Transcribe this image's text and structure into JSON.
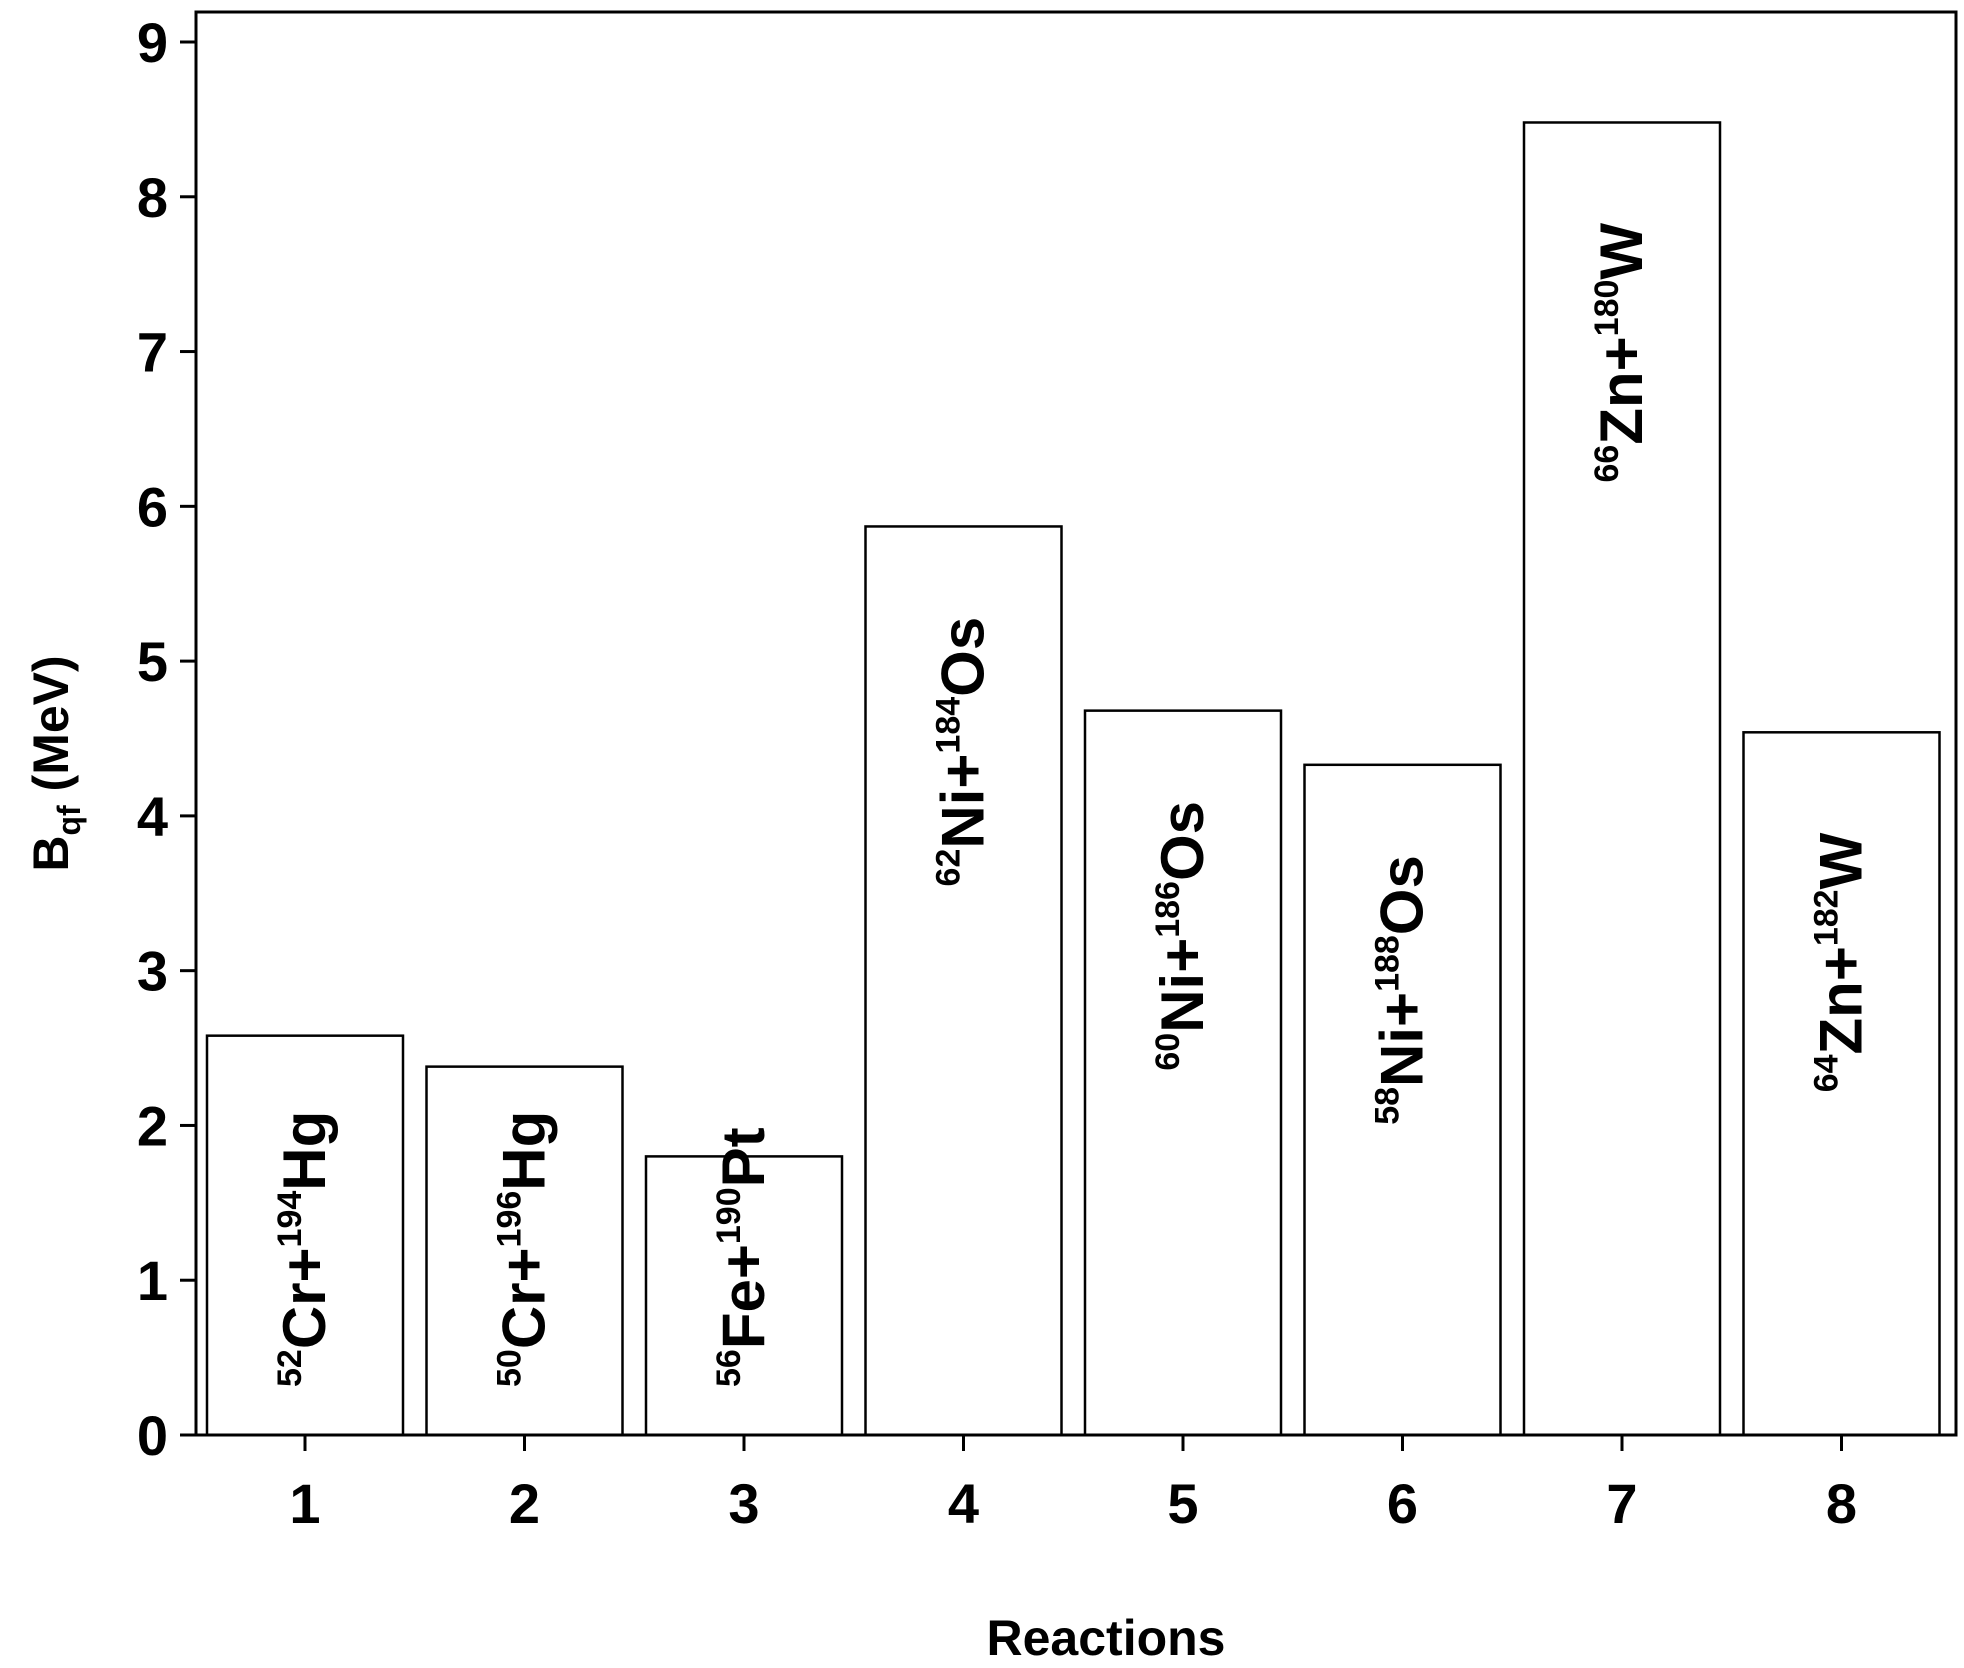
{
  "chart_data": {
    "type": "bar",
    "xlabel": "Reactions",
    "ylabel": {
      "main": "B",
      "sub": "qf",
      "rest": " (MeV)"
    },
    "ylim": [
      0,
      9
    ],
    "yticks": [
      "0",
      "1",
      "2",
      "3",
      "4",
      "5",
      "6",
      "7",
      "8",
      "9"
    ],
    "categories": [
      "1",
      "2",
      "3",
      "4",
      "5",
      "6",
      "7",
      "8"
    ],
    "values": [
      2.58,
      2.38,
      1.8,
      5.87,
      4.68,
      4.33,
      8.48,
      4.54
    ],
    "grid": false,
    "bar_labels": [
      {
        "a1": "52",
        "e1": "Cr+",
        "a2": "194",
        "e2": "Hg"
      },
      {
        "a1": "50",
        "e1": "Cr+",
        "a2": "196",
        "e2": "Hg"
      },
      {
        "a1": "56",
        "e1": "Fe+",
        "a2": "190",
        "e2": "Pt"
      },
      {
        "a1": "62",
        "e1": "Ni+",
        "a2": "184",
        "e2": "Os"
      },
      {
        "a1": "60",
        "e1": "Ni+",
        "a2": "186",
        "e2": "Os"
      },
      {
        "a1": "58",
        "e1": "Ni+",
        "a2": "188",
        "e2": "Os"
      },
      {
        "a1": "66",
        "e1": "Zn+",
        "a2": "180",
        "e2": "W"
      },
      {
        "a1": "64",
        "e1": "Zn+",
        "a2": "182",
        "e2": "W"
      }
    ]
  }
}
